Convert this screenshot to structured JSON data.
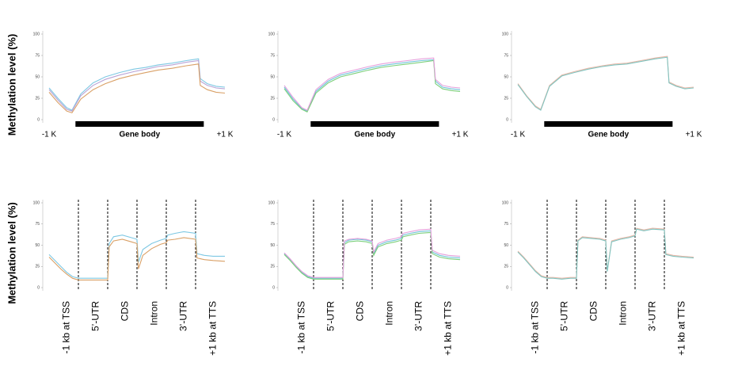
{
  "chart_data": [
    {
      "type": "line",
      "ylabel": "Methylation level (%)",
      "ylim": [
        0,
        100
      ],
      "yticks": [
        0,
        25,
        50,
        75,
        100
      ],
      "xlim": [
        0,
        100
      ],
      "xticks": [
        {
          "value": 0,
          "label": "-1 K"
        },
        {
          "value": 100,
          "label": "+1 K"
        }
      ],
      "regions": [
        {
          "label": "Gene body",
          "start": 15,
          "end": 88
        }
      ],
      "x": [
        0,
        5,
        10,
        13,
        18,
        25,
        32,
        40,
        48,
        55,
        62,
        70,
        78,
        85,
        86,
        90,
        95,
        100
      ],
      "series": [
        {
          "color": "#7ec8e3",
          "values": [
            37,
            25,
            14,
            11,
            30,
            43,
            50,
            55,
            59,
            61,
            64,
            66,
            69,
            71,
            48,
            42,
            39,
            38
          ]
        },
        {
          "color": "#b9a3d6",
          "values": [
            35,
            23,
            12,
            10,
            28,
            40,
            47,
            52,
            56,
            59,
            62,
            64,
            67,
            69,
            45,
            40,
            37,
            36
          ]
        },
        {
          "color": "#d9a066",
          "values": [
            32,
            20,
            10,
            8,
            24,
            35,
            42,
            48,
            52,
            55,
            58,
            60,
            63,
            65,
            40,
            35,
            32,
            31
          ]
        }
      ]
    },
    {
      "type": "line",
      "ylim": [
        0,
        100
      ],
      "yticks": [
        0,
        25,
        50,
        75,
        100
      ],
      "xlim": [
        0,
        100
      ],
      "xticks": [
        {
          "value": 0,
          "label": "-1 K"
        },
        {
          "value": 100,
          "label": "+1 K"
        }
      ],
      "regions": [
        {
          "label": "Gene body",
          "start": 15,
          "end": 88
        }
      ],
      "x": [
        0,
        5,
        10,
        13,
        18,
        25,
        32,
        40,
        48,
        55,
        62,
        70,
        78,
        85,
        86,
        90,
        95,
        100
      ],
      "series": [
        {
          "color": "#6fc3d8",
          "values": [
            38,
            24,
            13,
            10,
            33,
            45,
            52,
            56,
            60,
            63,
            65,
            67,
            69,
            70,
            45,
            38,
            36,
            35
          ]
        },
        {
          "color": "#7ccf7a",
          "values": [
            36,
            22,
            12,
            9,
            31,
            43,
            50,
            54,
            58,
            61,
            63,
            65,
            67,
            69,
            42,
            36,
            34,
            33
          ]
        },
        {
          "color": "#e6a0dc",
          "values": [
            40,
            26,
            14,
            11,
            35,
            47,
            54,
            58,
            62,
            65,
            67,
            69,
            71,
            72,
            47,
            40,
            38,
            37
          ]
        }
      ]
    },
    {
      "type": "line",
      "ylim": [
        0,
        100
      ],
      "yticks": [
        0,
        25,
        50,
        75,
        100
      ],
      "xlim": [
        0,
        100
      ],
      "xticks": [
        {
          "value": 0,
          "label": "-1 K"
        },
        {
          "value": 100,
          "label": "+1 K"
        }
      ],
      "regions": [
        {
          "label": "Gene body",
          "start": 15,
          "end": 88
        }
      ],
      "x": [
        0,
        5,
        10,
        13,
        18,
        25,
        32,
        40,
        48,
        55,
        62,
        70,
        78,
        85,
        86,
        90,
        95,
        100
      ],
      "series": [
        {
          "color": "#e9b8a8",
          "values": [
            42,
            28,
            16,
            12,
            40,
            52,
            56,
            60,
            63,
            65,
            66,
            69,
            72,
            74,
            44,
            40,
            37,
            38
          ]
        },
        {
          "color": "#7fc4c0",
          "values": [
            41,
            27,
            15,
            11,
            39,
            51,
            55,
            59,
            62,
            64,
            65,
            68,
            71,
            73,
            43,
            39,
            36,
            37
          ]
        }
      ]
    },
    {
      "type": "line",
      "ylabel": "Methylation level (%)",
      "ylim": [
        0,
        100
      ],
      "yticks": [
        0,
        25,
        50,
        75,
        100
      ],
      "xlim": [
        0,
        60
      ],
      "segments": [
        {
          "label": "-1 kb at TSS",
          "start": 0,
          "end": 10
        },
        {
          "label": "5’-UTR",
          "start": 10,
          "end": 20
        },
        {
          "label": "CDS",
          "start": 20,
          "end": 30
        },
        {
          "label": "Intron",
          "start": 30,
          "end": 40
        },
        {
          "label": "3’-UTR",
          "start": 40,
          "end": 50
        },
        {
          "label": "+1 kb at TTS",
          "start": 50,
          "end": 60
        }
      ],
      "x": [
        0,
        2,
        4,
        6,
        8,
        10,
        12,
        15,
        18,
        20,
        20.5,
        22,
        25,
        28,
        30,
        30.5,
        32,
        35,
        38,
        40,
        40.5,
        43,
        46,
        50,
        50.5,
        53,
        56,
        60
      ],
      "series": [
        {
          "color": "#7ec8e3",
          "values": [
            39,
            32,
            25,
            18,
            13,
            11,
            11,
            11,
            11,
            11,
            52,
            60,
            62,
            59,
            57,
            30,
            45,
            52,
            56,
            58,
            62,
            64,
            66,
            64,
            40,
            38,
            37,
            37
          ]
        },
        {
          "color": "#d9a066",
          "values": [
            36,
            29,
            22,
            16,
            11,
            9,
            9,
            9,
            9,
            9,
            48,
            55,
            57,
            54,
            52,
            22,
            38,
            46,
            51,
            53,
            56,
            57,
            59,
            57,
            35,
            33,
            32,
            31
          ]
        }
      ]
    },
    {
      "type": "line",
      "ylim": [
        0,
        100
      ],
      "yticks": [
        0,
        25,
        50,
        75,
        100
      ],
      "xlim": [
        0,
        60
      ],
      "segments": [
        {
          "label": "-1 kb at TSS",
          "start": 0,
          "end": 10
        },
        {
          "label": "5’-UTR",
          "start": 10,
          "end": 20
        },
        {
          "label": "CDS",
          "start": 20,
          "end": 30
        },
        {
          "label": "Intron",
          "start": 30,
          "end": 40
        },
        {
          "label": "3’-UTR",
          "start": 40,
          "end": 50
        },
        {
          "label": "+1 kb at TTS",
          "start": 50,
          "end": 60
        }
      ],
      "x": [
        0,
        2,
        4,
        6,
        8,
        10,
        12,
        15,
        18,
        20,
        20.5,
        22,
        25,
        28,
        30,
        30.5,
        32,
        35,
        38,
        40,
        40.5,
        43,
        46,
        50,
        50.5,
        53,
        56,
        60
      ],
      "series": [
        {
          "color": "#6fc3d8",
          "values": [
            40,
            33,
            25,
            18,
            13,
            11,
            11,
            11,
            11,
            11,
            53,
            56,
            57,
            56,
            54,
            40,
            50,
            54,
            56,
            58,
            62,
            64,
            66,
            67,
            42,
            38,
            36,
            35
          ]
        },
        {
          "color": "#7ccf7a",
          "values": [
            39,
            32,
            24,
            17,
            12,
            10,
            10,
            10,
            10,
            10,
            51,
            54,
            55,
            54,
            52,
            38,
            48,
            52,
            54,
            56,
            60,
            62,
            64,
            65,
            40,
            36,
            34,
            33
          ]
        },
        {
          "color": "#e6a0dc",
          "values": [
            41,
            34,
            26,
            19,
            14,
            12,
            12,
            12,
            12,
            12,
            55,
            57,
            58,
            57,
            55,
            42,
            52,
            56,
            58,
            60,
            64,
            66,
            68,
            69,
            44,
            40,
            38,
            37
          ]
        }
      ]
    },
    {
      "type": "line",
      "ylim": [
        0,
        100
      ],
      "yticks": [
        0,
        25,
        50,
        75,
        100
      ],
      "xlim": [
        0,
        60
      ],
      "segments": [
        {
          "label": "-1 kb at TSS",
          "start": 0,
          "end": 10
        },
        {
          "label": "5’-UTR",
          "start": 10,
          "end": 20
        },
        {
          "label": "CDS",
          "start": 20,
          "end": 30
        },
        {
          "label": "Intron",
          "start": 30,
          "end": 40
        },
        {
          "label": "3’-UTR",
          "start": 40,
          "end": 50
        },
        {
          "label": "+1 kb at TTS",
          "start": 50,
          "end": 60
        }
      ],
      "x": [
        0,
        2,
        4,
        6,
        8,
        10,
        12,
        15,
        18,
        20,
        20.5,
        22,
        25,
        28,
        30,
        30.5,
        32,
        35,
        38,
        40,
        40.5,
        43,
        46,
        50,
        50.5,
        53,
        56,
        60
      ],
      "series": [
        {
          "color": "#e9b8a8",
          "values": [
            43,
            36,
            28,
            20,
            14,
            12,
            12,
            11,
            12,
            12,
            56,
            60,
            59,
            58,
            56,
            20,
            55,
            58,
            60,
            62,
            70,
            68,
            70,
            69,
            40,
            38,
            37,
            36
          ]
        },
        {
          "color": "#7fc4c0",
          "values": [
            42,
            35,
            27,
            19,
            13,
            11,
            11,
            10,
            11,
            11,
            55,
            59,
            58,
            57,
            55,
            19,
            54,
            57,
            59,
            61,
            69,
            67,
            69,
            68,
            39,
            37,
            36,
            35
          ]
        }
      ]
    }
  ]
}
